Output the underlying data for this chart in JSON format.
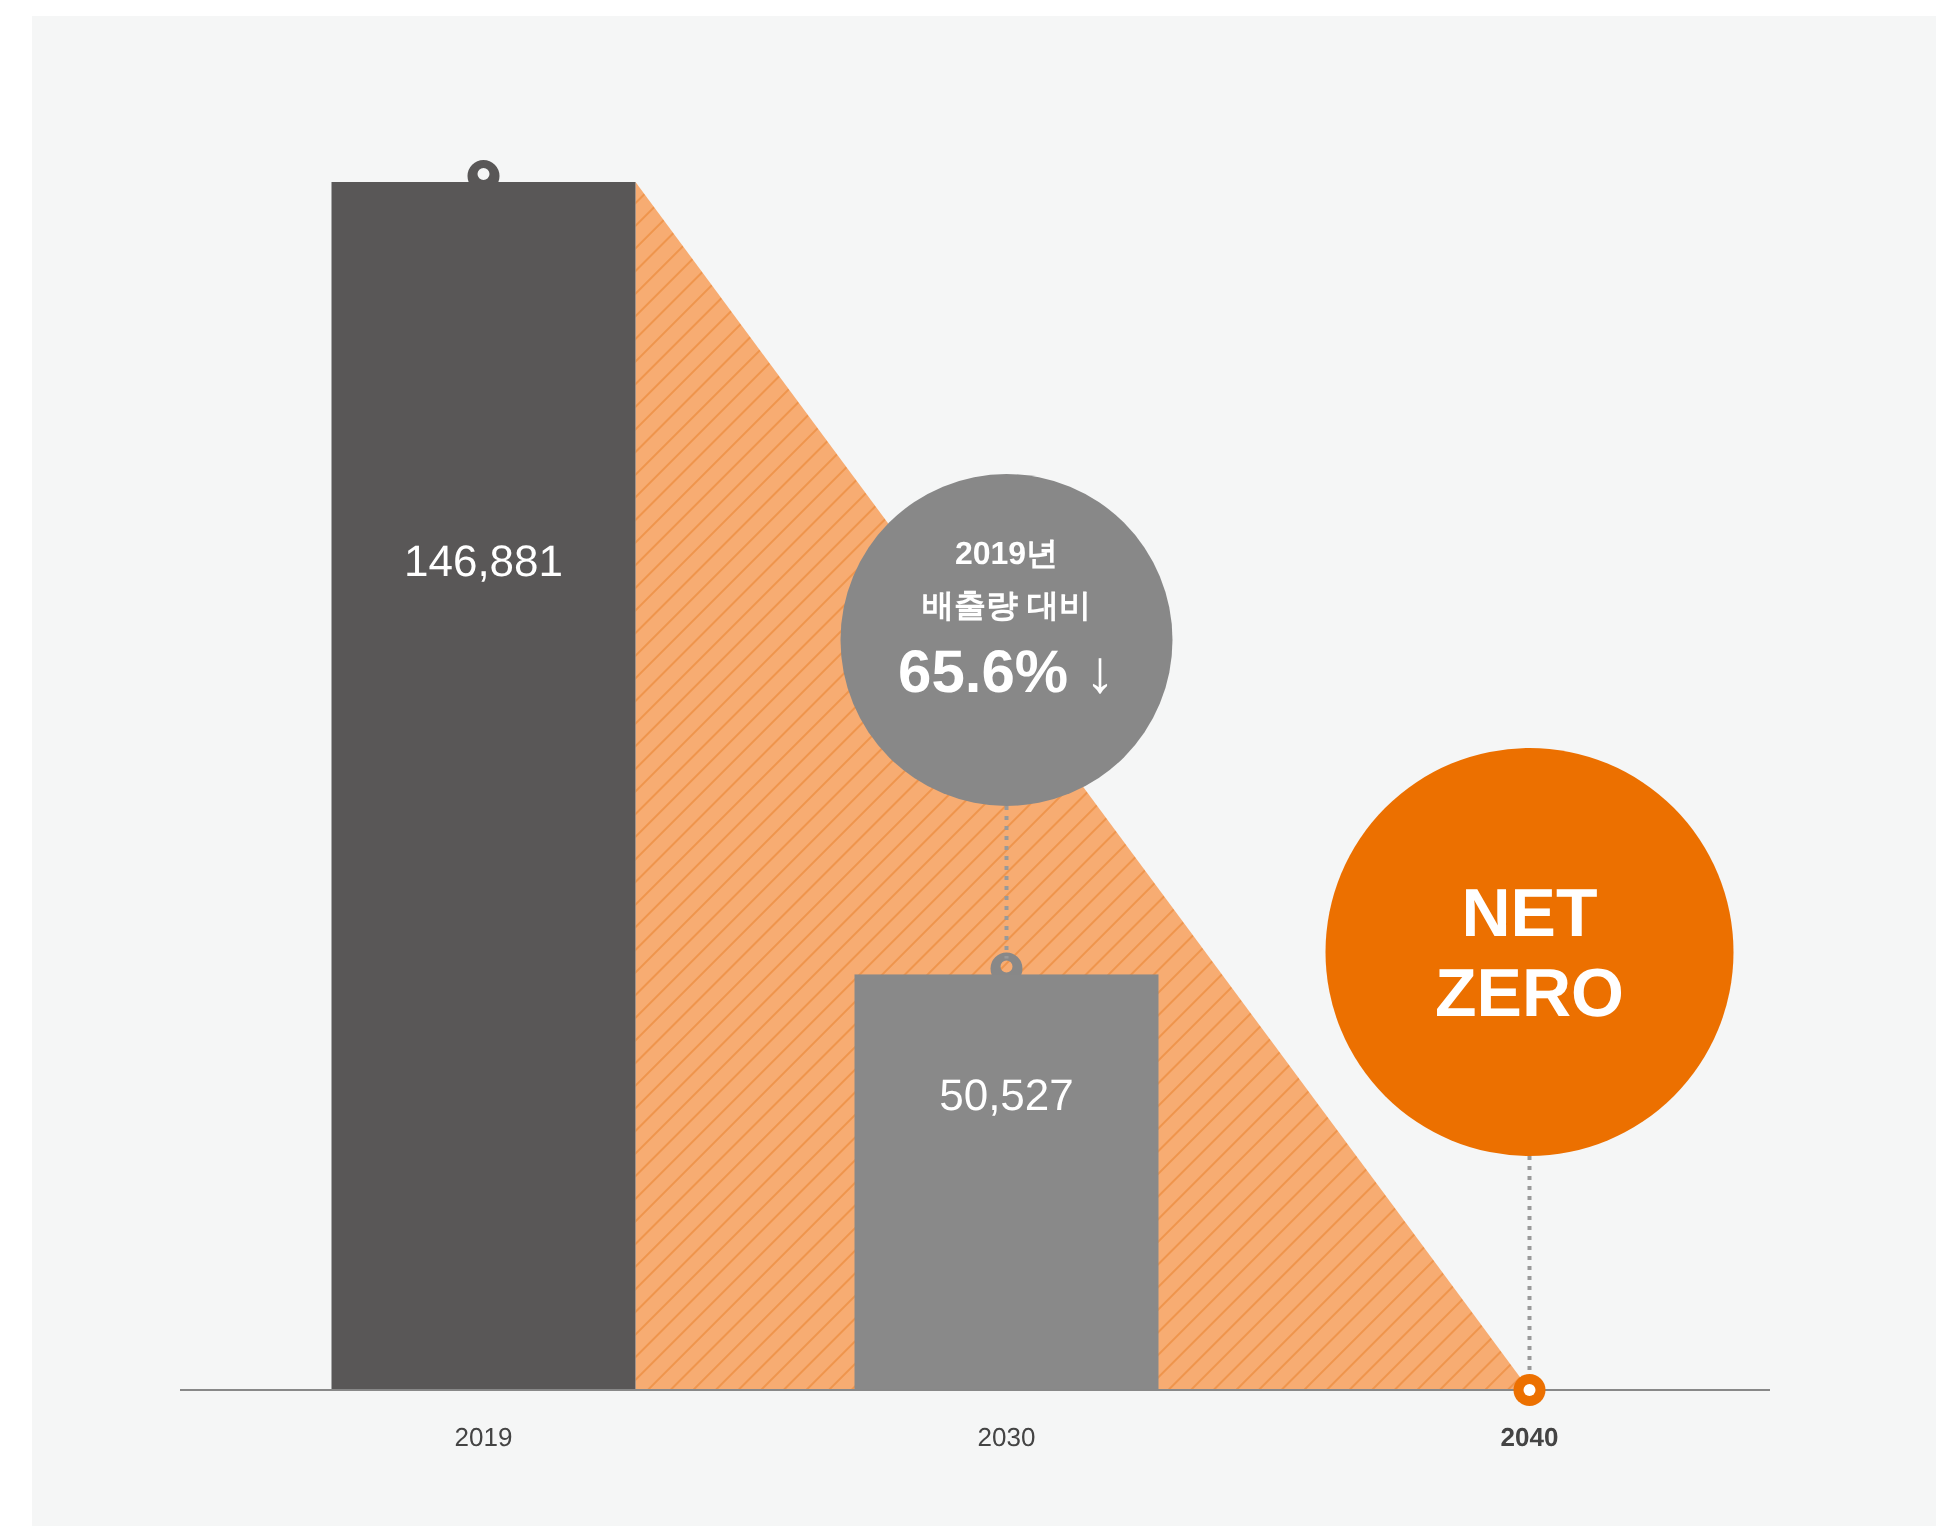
{
  "chart_data": {
    "type": "bar",
    "categories": [
      "2019",
      "2030",
      "2040"
    ],
    "values": [
      146881,
      50527,
      0
    ],
    "colors": [
      "#595757",
      "#898989",
      "#e1e2e2"
    ],
    "value_labels": [
      "146,881",
      "50,527",
      null
    ],
    "annotations": [
      "2019년\n배출량 대비\n65.6% ↓",
      "NET\nZERO"
    ]
  }
}
